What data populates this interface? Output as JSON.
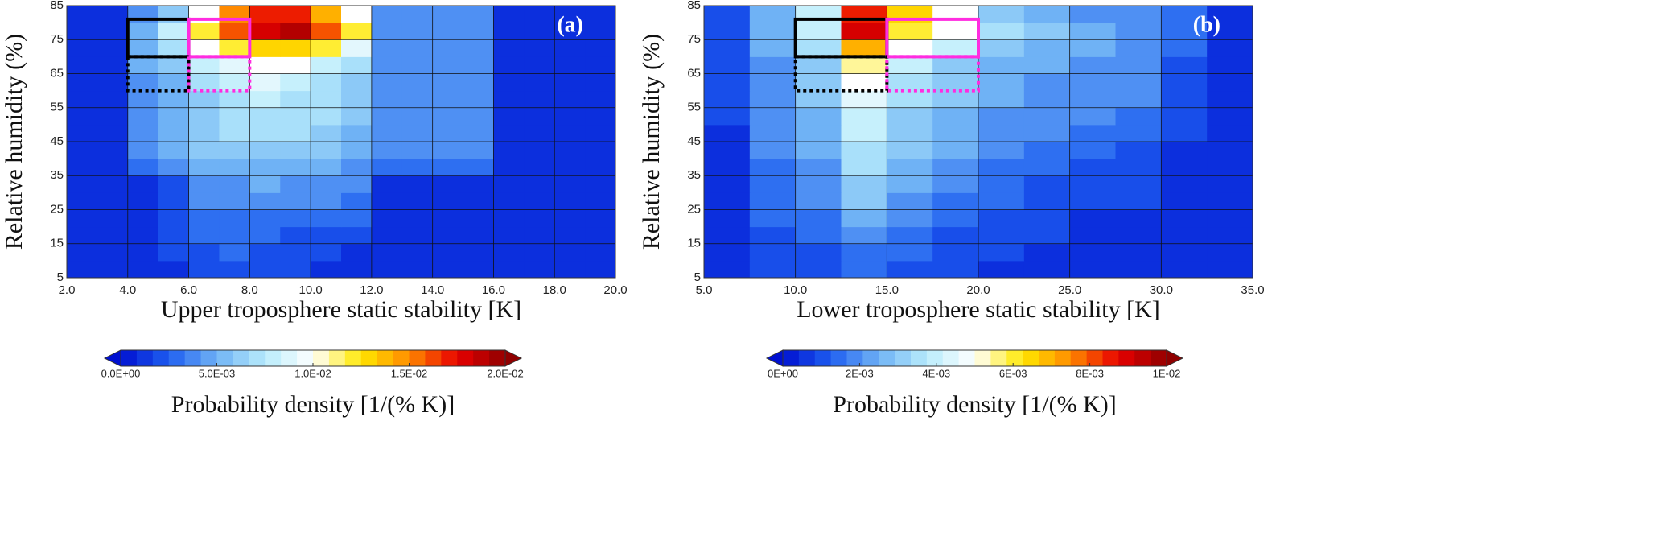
{
  "chart_data": [
    {
      "type": "heatmap",
      "panel_label": "(a)",
      "x_label": "Upper troposphere static stability [K]",
      "y_label": "Relative humidity (%)",
      "xlim": [
        2,
        20
      ],
      "ylim": [
        5,
        85
      ],
      "xticks": [
        {
          "value": 2,
          "label": "2.0"
        },
        {
          "value": 4,
          "label": "4.0"
        },
        {
          "value": 6,
          "label": "6.0"
        },
        {
          "value": 8,
          "label": "8.0"
        },
        {
          "value": 10,
          "label": "10.0"
        },
        {
          "value": 12,
          "label": "12.0"
        },
        {
          "value": 14,
          "label": "14.0"
        },
        {
          "value": 16,
          "label": "16.0"
        },
        {
          "value": 18,
          "label": "18.0"
        },
        {
          "value": 20,
          "label": "20.0"
        }
      ],
      "yticks": [
        5,
        15,
        25,
        35,
        45,
        55,
        65,
        75,
        85
      ],
      "grid": true,
      "x_bins": [
        2,
        3,
        4,
        5,
        6,
        7,
        8,
        9,
        10,
        11,
        12,
        13,
        14,
        15,
        16,
        17,
        18,
        19,
        20
      ],
      "y_bins": [
        5,
        10,
        15,
        20,
        25,
        30,
        35,
        40,
        45,
        50,
        55,
        60,
        65,
        70,
        75,
        80,
        85
      ],
      "values": [
        [
          0.001,
          0.001,
          0.001,
          0.001,
          0.002,
          0.002,
          0.002,
          0.002,
          0.001,
          0.001,
          0.001,
          0.001,
          0.001,
          0.001,
          0.001,
          0.001,
          0.001,
          0.001
        ],
        [
          0.001,
          0.001,
          0.001,
          0.002,
          0.002,
          0.003,
          0.002,
          0.002,
          0.002,
          0.001,
          0.001,
          0.001,
          0.001,
          0.001,
          0.001,
          0.001,
          0.001,
          0.001
        ],
        [
          0.001,
          0.001,
          0.001,
          0.002,
          0.003,
          0.003,
          0.003,
          0.002,
          0.002,
          0.002,
          0.001,
          0.001,
          0.001,
          0.001,
          0.001,
          0.001,
          0.001,
          0.001
        ],
        [
          0.001,
          0.001,
          0.001,
          0.002,
          0.003,
          0.003,
          0.003,
          0.003,
          0.003,
          0.003,
          0.001,
          0.001,
          0.001,
          0.001,
          0.001,
          0.001,
          0.001,
          0.001
        ],
        [
          0.001,
          0.001,
          0.001,
          0.002,
          0.004,
          0.004,
          0.004,
          0.004,
          0.004,
          0.003,
          0.001,
          0.001,
          0.001,
          0.001,
          0.001,
          0.001,
          0.001,
          0.001
        ],
        [
          0.001,
          0.001,
          0.001,
          0.002,
          0.004,
          0.004,
          0.005,
          0.004,
          0.004,
          0.004,
          0.001,
          0.001,
          0.001,
          0.001,
          0.001,
          0.001,
          0.001,
          0.001
        ],
        [
          0.001,
          0.001,
          0.003,
          0.004,
          0.005,
          0.005,
          0.005,
          0.005,
          0.005,
          0.004,
          0.003,
          0.003,
          0.003,
          0.003,
          0.001,
          0.001,
          0.001,
          0.001
        ],
        [
          0.001,
          0.001,
          0.004,
          0.005,
          0.006,
          0.006,
          0.006,
          0.006,
          0.006,
          0.005,
          0.004,
          0.004,
          0.004,
          0.004,
          0.001,
          0.001,
          0.001,
          0.001
        ],
        [
          0.001,
          0.001,
          0.004,
          0.005,
          0.006,
          0.007,
          0.007,
          0.007,
          0.006,
          0.005,
          0.004,
          0.004,
          0.004,
          0.004,
          0.001,
          0.001,
          0.001,
          0.001
        ],
        [
          0.001,
          0.001,
          0.004,
          0.005,
          0.006,
          0.007,
          0.007,
          0.007,
          0.007,
          0.006,
          0.004,
          0.004,
          0.004,
          0.004,
          0.001,
          0.001,
          0.001,
          0.001
        ],
        [
          0.001,
          0.001,
          0.004,
          0.005,
          0.006,
          0.007,
          0.008,
          0.007,
          0.007,
          0.006,
          0.004,
          0.004,
          0.004,
          0.004,
          0.001,
          0.001,
          0.001,
          0.001
        ],
        [
          0.001,
          0.001,
          0.004,
          0.005,
          0.007,
          0.008,
          0.009,
          0.008,
          0.007,
          0.006,
          0.004,
          0.004,
          0.004,
          0.004,
          0.001,
          0.001,
          0.001,
          0.001
        ],
        [
          0.001,
          0.001,
          0.005,
          0.006,
          0.008,
          0.009,
          0.01,
          0.01,
          0.008,
          0.007,
          0.004,
          0.004,
          0.004,
          0.004,
          0.001,
          0.001,
          0.001,
          0.001
        ],
        [
          0.001,
          0.001,
          0.005,
          0.007,
          0.01,
          0.012,
          0.013,
          0.013,
          0.012,
          0.009,
          0.004,
          0.004,
          0.004,
          0.004,
          0.001,
          0.001,
          0.001,
          0.001
        ],
        [
          0.001,
          0.001,
          0.005,
          0.008,
          0.012,
          0.016,
          0.018,
          0.019,
          0.016,
          0.012,
          0.004,
          0.004,
          0.004,
          0.004,
          0.001,
          0.001,
          0.001,
          0.001
        ],
        [
          0.001,
          0.001,
          0.004,
          0.006,
          0.01,
          0.015,
          0.017,
          0.017,
          0.014,
          0.01,
          0.004,
          0.004,
          0.004,
          0.004,
          0.001,
          0.001,
          0.001,
          0.001
        ]
      ],
      "regions": [
        {
          "x": [
            4,
            6
          ],
          "y": [
            70,
            81
          ],
          "color": "#000000",
          "dashed": false
        },
        {
          "x": [
            6,
            8
          ],
          "y": [
            70,
            81
          ],
          "color": "#ff2ce0",
          "dashed": false
        },
        {
          "x": [
            4,
            6
          ],
          "y": [
            60,
            70
          ],
          "color": "#000000",
          "dashed": true
        },
        {
          "x": [
            6,
            8
          ],
          "y": [
            60,
            70
          ],
          "color": "#ff2ce0",
          "dashed": true
        }
      ],
      "colorbar": {
        "label": "Probability density [1/(% K)]",
        "lim": [
          0,
          0.02
        ],
        "ticks": [
          {
            "value": 0,
            "label": "0.0E+00"
          },
          {
            "value": 0.005,
            "label": "5.0E-03"
          },
          {
            "value": 0.01,
            "label": "1.0E-02"
          },
          {
            "value": 0.015,
            "label": "1.5E-02"
          },
          {
            "value": 0.02,
            "label": "2.0E-02"
          }
        ],
        "colors": [
          "#0010d0",
          "#1e5ef0",
          "#6fb2f5",
          "#b8ecfb",
          "#ffffff",
          "#ffe800",
          "#ff8a00",
          "#e80000",
          "#900000"
        ]
      }
    },
    {
      "type": "heatmap",
      "panel_label": "(b)",
      "x_label": "Lower troposphere static stability [K]",
      "y_label": "Relative humidity (%)",
      "xlim": [
        5,
        35
      ],
      "ylim": [
        5,
        85
      ],
      "xticks": [
        {
          "value": 5,
          "label": "5.0"
        },
        {
          "value": 10,
          "label": "10.0"
        },
        {
          "value": 15,
          "label": "15.0"
        },
        {
          "value": 20,
          "label": "20.0"
        },
        {
          "value": 25,
          "label": "25.0"
        },
        {
          "value": 30,
          "label": "30.0"
        },
        {
          "value": 35,
          "label": "35.0"
        }
      ],
      "yticks": [
        5,
        15,
        25,
        35,
        45,
        55,
        65,
        75,
        85
      ],
      "grid": true,
      "x_bins": [
        5,
        7.5,
        10,
        12.5,
        15,
        17.5,
        20,
        22.5,
        25,
        27.5,
        30,
        32.5,
        35
      ],
      "y_bins": [
        5,
        10,
        15,
        20,
        25,
        30,
        35,
        40,
        45,
        50,
        55,
        60,
        65,
        70,
        75,
        80,
        85
      ],
      "values": [
        [
          0.0005,
          0.001,
          0.001,
          0.0015,
          0.001,
          0.001,
          0.0005,
          0.0005,
          0.0005,
          0.0005,
          0.0005,
          0.0005
        ],
        [
          0.0005,
          0.001,
          0.001,
          0.0015,
          0.0015,
          0.001,
          0.001,
          0.0005,
          0.0005,
          0.0005,
          0.0005,
          0.0005
        ],
        [
          0.0005,
          0.001,
          0.0015,
          0.002,
          0.0015,
          0.001,
          0.001,
          0.001,
          0.0005,
          0.0005,
          0.0005,
          0.0005
        ],
        [
          0.0005,
          0.0015,
          0.0015,
          0.0025,
          0.002,
          0.0015,
          0.001,
          0.001,
          0.0005,
          0.0005,
          0.0005,
          0.0005
        ],
        [
          0.0005,
          0.0015,
          0.002,
          0.003,
          0.002,
          0.0015,
          0.0015,
          0.001,
          0.001,
          0.001,
          0.0005,
          0.0005
        ],
        [
          0.0005,
          0.0015,
          0.002,
          0.003,
          0.0025,
          0.002,
          0.0015,
          0.001,
          0.001,
          0.001,
          0.0005,
          0.0005
        ],
        [
          0.0005,
          0.0015,
          0.002,
          0.0035,
          0.0025,
          0.002,
          0.0015,
          0.0015,
          0.001,
          0.001,
          0.0005,
          0.0005
        ],
        [
          0.0005,
          0.002,
          0.0025,
          0.0035,
          0.003,
          0.0025,
          0.002,
          0.0015,
          0.0015,
          0.001,
          0.0005,
          0.0005
        ],
        [
          0.0005,
          0.002,
          0.0025,
          0.004,
          0.003,
          0.0025,
          0.002,
          0.002,
          0.0015,
          0.0015,
          0.001,
          0.0005
        ],
        [
          0.001,
          0.002,
          0.0025,
          0.004,
          0.003,
          0.0025,
          0.002,
          0.002,
          0.002,
          0.0015,
          0.001,
          0.0005
        ],
        [
          0.001,
          0.002,
          0.003,
          0.0045,
          0.0035,
          0.003,
          0.0025,
          0.002,
          0.002,
          0.002,
          0.001,
          0.0005
        ],
        [
          0.001,
          0.002,
          0.003,
          0.005,
          0.0035,
          0.003,
          0.0025,
          0.002,
          0.002,
          0.002,
          0.001,
          0.0005
        ],
        [
          0.001,
          0.002,
          0.003,
          0.0055,
          0.004,
          0.003,
          0.0025,
          0.0025,
          0.002,
          0.002,
          0.001,
          0.0005
        ],
        [
          0.001,
          0.0025,
          0.0035,
          0.007,
          0.005,
          0.004,
          0.003,
          0.0025,
          0.0025,
          0.002,
          0.0015,
          0.0005
        ],
        [
          0.001,
          0.0025,
          0.004,
          0.009,
          0.006,
          0.005,
          0.0035,
          0.003,
          0.0025,
          0.002,
          0.0015,
          0.0005
        ],
        [
          0.001,
          0.0025,
          0.004,
          0.0085,
          0.0065,
          0.005,
          0.003,
          0.0025,
          0.002,
          0.002,
          0.0015,
          0.0005
        ]
      ],
      "regions": [
        {
          "x": [
            10,
            15
          ],
          "y": [
            70,
            81
          ],
          "color": "#000000",
          "dashed": false
        },
        {
          "x": [
            15,
            20
          ],
          "y": [
            70,
            81
          ],
          "color": "#ff2ce0",
          "dashed": false
        },
        {
          "x": [
            10,
            15
          ],
          "y": [
            60,
            70
          ],
          "color": "#000000",
          "dashed": true
        },
        {
          "x": [
            15,
            20
          ],
          "y": [
            60,
            70
          ],
          "color": "#ff2ce0",
          "dashed": true
        }
      ],
      "colorbar": {
        "label": "Probability density [1/(% K)]",
        "lim": [
          0,
          0.01
        ],
        "ticks": [
          {
            "value": 0,
            "label": "0E+00"
          },
          {
            "value": 0.002,
            "label": "2E-03"
          },
          {
            "value": 0.004,
            "label": "4E-03"
          },
          {
            "value": 0.006,
            "label": "6E-03"
          },
          {
            "value": 0.008,
            "label": "8E-03"
          },
          {
            "value": 0.01,
            "label": "1E-02"
          }
        ],
        "colors": [
          "#0010d0",
          "#1e5ef0",
          "#6fb2f5",
          "#b8ecfb",
          "#ffffff",
          "#ffe800",
          "#ff8a00",
          "#e80000",
          "#900000"
        ]
      }
    }
  ]
}
